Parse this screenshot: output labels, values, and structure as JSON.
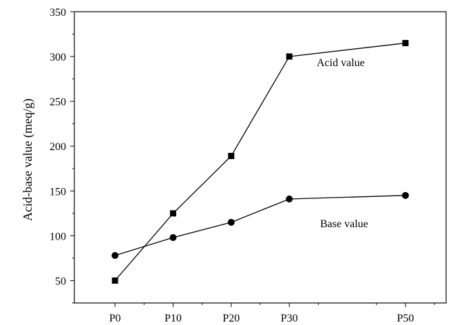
{
  "chart_data": {
    "type": "line",
    "title": "",
    "xlabel": "",
    "ylabel": "Acid-base value (meq/g)",
    "categories": [
      "P0",
      "P10",
      "P20",
      "P30",
      "P50"
    ],
    "x": [
      0,
      10,
      20,
      30,
      50
    ],
    "ylim": [
      25,
      350
    ],
    "yticks": [
      50,
      100,
      150,
      200,
      250,
      300,
      350
    ],
    "grid": false,
    "series": [
      {
        "name": "Acid value",
        "marker": "square",
        "values": [
          50,
          125,
          189,
          300,
          315
        ]
      },
      {
        "name": "Base value",
        "marker": "circle",
        "values": [
          78,
          98,
          115,
          141,
          145
        ]
      }
    ],
    "annotations": [
      {
        "text": "Acid value",
        "series": "Acid value"
      },
      {
        "text": "Base value",
        "series": "Base value"
      }
    ]
  }
}
